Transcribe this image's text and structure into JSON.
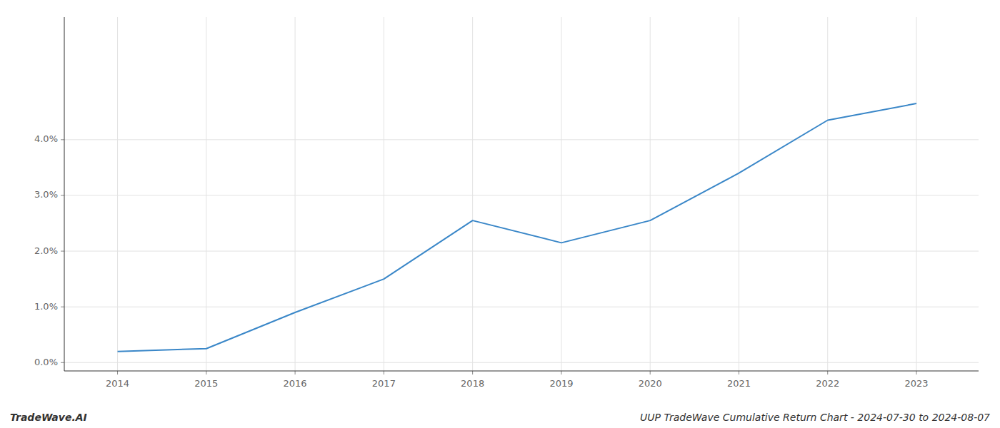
{
  "chart_data": {
    "type": "line",
    "x": [
      2014,
      2015,
      2016,
      2017,
      2018,
      2019,
      2020,
      2021,
      2022,
      2023
    ],
    "values": [
      0.002,
      0.0025,
      0.009,
      0.015,
      0.0255,
      0.0215,
      0.0255,
      0.034,
      0.0435,
      0.0465
    ],
    "color": "#3a87c8",
    "xlim": [
      2013.4,
      2023.7
    ],
    "xticks": [
      2014,
      2015,
      2016,
      2017,
      2018,
      2019,
      2020,
      2021,
      2022,
      2023
    ],
    "ylim": [
      -0.0015,
      0.062
    ],
    "yticks": [
      {
        "value": 0.0,
        "label": "0.0%"
      },
      {
        "value": 0.01,
        "label": "1.0%"
      },
      {
        "value": 0.02,
        "label": "2.0%"
      },
      {
        "value": 0.03,
        "label": "3.0%"
      },
      {
        "value": 0.04,
        "label": "4.0%"
      }
    ],
    "grid": true,
    "annotations": [
      "TradeWave.AI",
      "UUP TradeWave Cumulative Return Chart - 2024-07-30 to 2024-08-07"
    ]
  }
}
